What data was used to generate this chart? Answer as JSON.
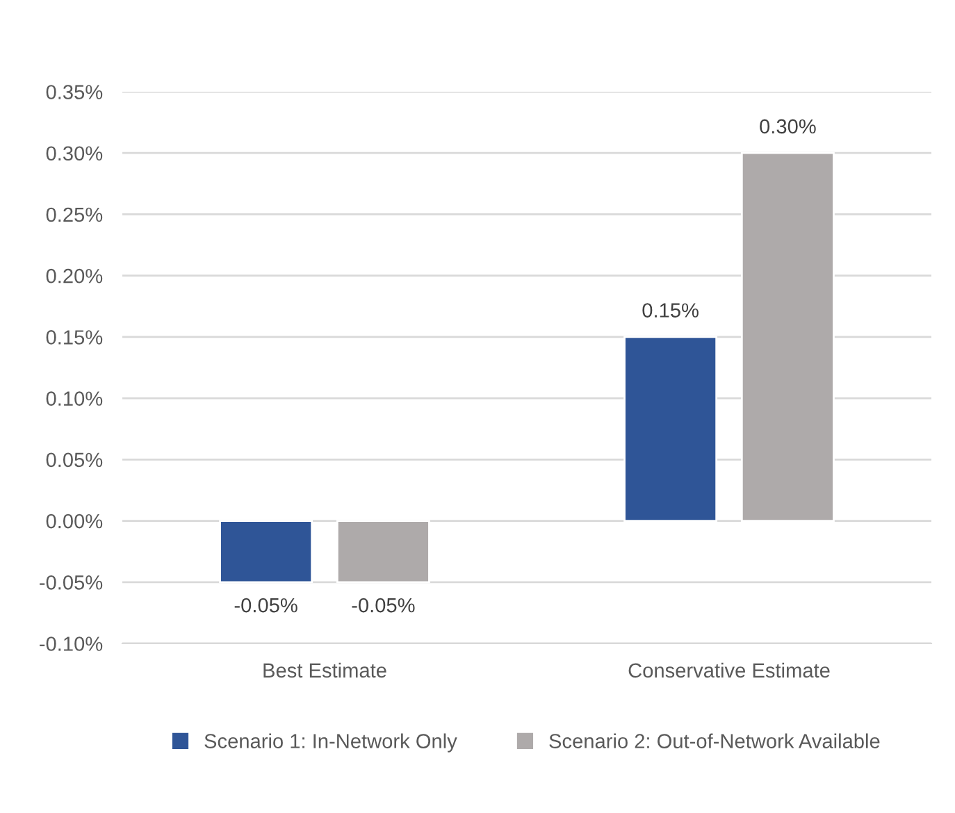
{
  "chart_data": {
    "type": "bar",
    "categories": [
      "Best Estimate",
      "Conservative Estimate"
    ],
    "series": [
      {
        "name": "Scenario 1: In-Network Only",
        "color": "#2f5597",
        "values": [
          -0.05,
          0.15
        ],
        "value_labels": [
          "-0.05%",
          "0.15%"
        ]
      },
      {
        "name": "Scenario 2: Out-of-Network Available",
        "color": "#aeaaaa",
        "values": [
          -0.05,
          0.3
        ],
        "value_labels": [
          "-0.05%",
          "0.30%"
        ]
      }
    ],
    "ylim": [
      -0.1,
      0.35
    ],
    "yticks": [
      {
        "value": -0.1,
        "label": "-0.10%"
      },
      {
        "value": -0.05,
        "label": "-0.05%"
      },
      {
        "value": 0,
        "label": "0.00%"
      },
      {
        "value": 0.05,
        "label": "0.05%"
      },
      {
        "value": 0.1,
        "label": "0.10%"
      },
      {
        "value": 0.15,
        "label": "0.15%"
      },
      {
        "value": 0.2,
        "label": "0.20%"
      },
      {
        "value": 0.25,
        "label": "0.25%"
      },
      {
        "value": 0.3,
        "label": "0.30%"
      },
      {
        "value": 0.35,
        "label": "0.35%"
      }
    ],
    "grid": "y",
    "legend": "bottom"
  }
}
